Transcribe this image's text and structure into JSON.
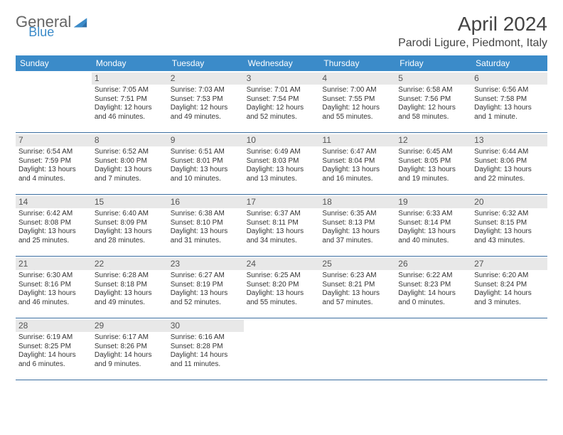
{
  "logo": {
    "part1": "General",
    "part2": "Blue"
  },
  "title": "April 2024",
  "location": "Parodi Ligure, Piedmont, Italy",
  "colors": {
    "header_bg": "#3b8bc9",
    "header_text": "#ffffff",
    "daynum_bg": "#e8e8e8",
    "week_border": "#3b6ea0",
    "body_text": "#333333"
  },
  "weekdays": [
    "Sunday",
    "Monday",
    "Tuesday",
    "Wednesday",
    "Thursday",
    "Friday",
    "Saturday"
  ],
  "cells": [
    {
      "day": "",
      "lines": []
    },
    {
      "day": "1",
      "lines": [
        "Sunrise: 7:05 AM",
        "Sunset: 7:51 PM",
        "Daylight: 12 hours and 46 minutes."
      ]
    },
    {
      "day": "2",
      "lines": [
        "Sunrise: 7:03 AM",
        "Sunset: 7:53 PM",
        "Daylight: 12 hours and 49 minutes."
      ]
    },
    {
      "day": "3",
      "lines": [
        "Sunrise: 7:01 AM",
        "Sunset: 7:54 PM",
        "Daylight: 12 hours and 52 minutes."
      ]
    },
    {
      "day": "4",
      "lines": [
        "Sunrise: 7:00 AM",
        "Sunset: 7:55 PM",
        "Daylight: 12 hours and 55 minutes."
      ]
    },
    {
      "day": "5",
      "lines": [
        "Sunrise: 6:58 AM",
        "Sunset: 7:56 PM",
        "Daylight: 12 hours and 58 minutes."
      ]
    },
    {
      "day": "6",
      "lines": [
        "Sunrise: 6:56 AM",
        "Sunset: 7:58 PM",
        "Daylight: 13 hours and 1 minute."
      ]
    },
    {
      "day": "7",
      "lines": [
        "Sunrise: 6:54 AM",
        "Sunset: 7:59 PM",
        "Daylight: 13 hours and 4 minutes."
      ]
    },
    {
      "day": "8",
      "lines": [
        "Sunrise: 6:52 AM",
        "Sunset: 8:00 PM",
        "Daylight: 13 hours and 7 minutes."
      ]
    },
    {
      "day": "9",
      "lines": [
        "Sunrise: 6:51 AM",
        "Sunset: 8:01 PM",
        "Daylight: 13 hours and 10 minutes."
      ]
    },
    {
      "day": "10",
      "lines": [
        "Sunrise: 6:49 AM",
        "Sunset: 8:03 PM",
        "Daylight: 13 hours and 13 minutes."
      ]
    },
    {
      "day": "11",
      "lines": [
        "Sunrise: 6:47 AM",
        "Sunset: 8:04 PM",
        "Daylight: 13 hours and 16 minutes."
      ]
    },
    {
      "day": "12",
      "lines": [
        "Sunrise: 6:45 AM",
        "Sunset: 8:05 PM",
        "Daylight: 13 hours and 19 minutes."
      ]
    },
    {
      "day": "13",
      "lines": [
        "Sunrise: 6:44 AM",
        "Sunset: 8:06 PM",
        "Daylight: 13 hours and 22 minutes."
      ]
    },
    {
      "day": "14",
      "lines": [
        "Sunrise: 6:42 AM",
        "Sunset: 8:08 PM",
        "Daylight: 13 hours and 25 minutes."
      ]
    },
    {
      "day": "15",
      "lines": [
        "Sunrise: 6:40 AM",
        "Sunset: 8:09 PM",
        "Daylight: 13 hours and 28 minutes."
      ]
    },
    {
      "day": "16",
      "lines": [
        "Sunrise: 6:38 AM",
        "Sunset: 8:10 PM",
        "Daylight: 13 hours and 31 minutes."
      ]
    },
    {
      "day": "17",
      "lines": [
        "Sunrise: 6:37 AM",
        "Sunset: 8:11 PM",
        "Daylight: 13 hours and 34 minutes."
      ]
    },
    {
      "day": "18",
      "lines": [
        "Sunrise: 6:35 AM",
        "Sunset: 8:13 PM",
        "Daylight: 13 hours and 37 minutes."
      ]
    },
    {
      "day": "19",
      "lines": [
        "Sunrise: 6:33 AM",
        "Sunset: 8:14 PM",
        "Daylight: 13 hours and 40 minutes."
      ]
    },
    {
      "day": "20",
      "lines": [
        "Sunrise: 6:32 AM",
        "Sunset: 8:15 PM",
        "Daylight: 13 hours and 43 minutes."
      ]
    },
    {
      "day": "21",
      "lines": [
        "Sunrise: 6:30 AM",
        "Sunset: 8:16 PM",
        "Daylight: 13 hours and 46 minutes."
      ]
    },
    {
      "day": "22",
      "lines": [
        "Sunrise: 6:28 AM",
        "Sunset: 8:18 PM",
        "Daylight: 13 hours and 49 minutes."
      ]
    },
    {
      "day": "23",
      "lines": [
        "Sunrise: 6:27 AM",
        "Sunset: 8:19 PM",
        "Daylight: 13 hours and 52 minutes."
      ]
    },
    {
      "day": "24",
      "lines": [
        "Sunrise: 6:25 AM",
        "Sunset: 8:20 PM",
        "Daylight: 13 hours and 55 minutes."
      ]
    },
    {
      "day": "25",
      "lines": [
        "Sunrise: 6:23 AM",
        "Sunset: 8:21 PM",
        "Daylight: 13 hours and 57 minutes."
      ]
    },
    {
      "day": "26",
      "lines": [
        "Sunrise: 6:22 AM",
        "Sunset: 8:23 PM",
        "Daylight: 14 hours and 0 minutes."
      ]
    },
    {
      "day": "27",
      "lines": [
        "Sunrise: 6:20 AM",
        "Sunset: 8:24 PM",
        "Daylight: 14 hours and 3 minutes."
      ]
    },
    {
      "day": "28",
      "lines": [
        "Sunrise: 6:19 AM",
        "Sunset: 8:25 PM",
        "Daylight: 14 hours and 6 minutes."
      ]
    },
    {
      "day": "29",
      "lines": [
        "Sunrise: 6:17 AM",
        "Sunset: 8:26 PM",
        "Daylight: 14 hours and 9 minutes."
      ]
    },
    {
      "day": "30",
      "lines": [
        "Sunrise: 6:16 AM",
        "Sunset: 8:28 PM",
        "Daylight: 14 hours and 11 minutes."
      ]
    },
    {
      "day": "",
      "lines": []
    },
    {
      "day": "",
      "lines": []
    },
    {
      "day": "",
      "lines": []
    },
    {
      "day": "",
      "lines": []
    }
  ]
}
